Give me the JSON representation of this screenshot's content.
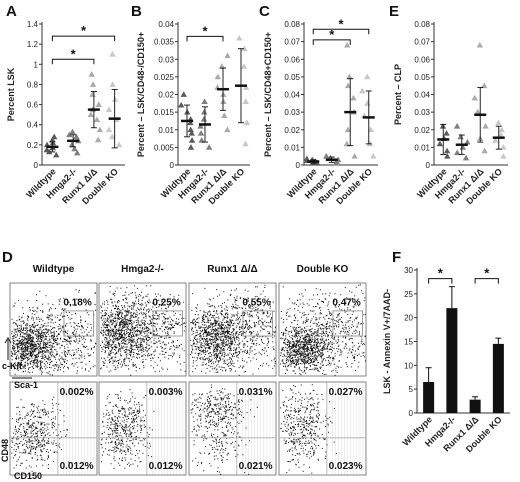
{
  "charts": [
    {
      "panel": "A",
      "type": "scatter",
      "ylabel": "Percent LSK",
      "ylim": [
        0,
        1.4
      ],
      "yticks": [
        "0",
        "0.2",
        "0.4",
        "0.6",
        "0.8",
        "1",
        "1.2",
        "1.4"
      ],
      "categories": [
        "Wildtype",
        "Hmga2-/-",
        "Runx1 Δ/Δ",
        "Double KO"
      ],
      "groups": [
        {
          "points": [
            0.1,
            0.13,
            0.15,
            0.17,
            0.2,
            0.22,
            0.25,
            0.28
          ],
          "mean": 0.18,
          "sd": 0.05
        },
        {
          "points": [
            0.12,
            0.16,
            0.2,
            0.24,
            0.28,
            0.3,
            0.33
          ],
          "mean": 0.24,
          "sd": 0.06
        },
        {
          "points": [
            0.25,
            0.35,
            0.45,
            0.5,
            0.55,
            0.6,
            0.7,
            0.8,
            0.9
          ],
          "mean": 0.55,
          "sd": 0.18
        },
        {
          "points": [
            0.2,
            0.28,
            0.35,
            0.45,
            0.55,
            0.65,
            0.8,
            1.1
          ],
          "mean": 0.46,
          "sd": 0.29
        }
      ],
      "significance": [
        {
          "from": 0,
          "to": 2,
          "level": 1.05,
          "label": "*"
        },
        {
          "from": 0,
          "to": 3,
          "level": 1.28,
          "label": "*"
        }
      ]
    },
    {
      "panel": "B",
      "type": "scatter",
      "ylabel": "Percent – LSK/CD48-/CD150+",
      "ylim": [
        0,
        0.04
      ],
      "yticks": [
        "0",
        "0.005",
        "0.01",
        "0.015",
        "0.02",
        "0.025",
        "0.03",
        "0.035",
        "0.04"
      ],
      "categories": [
        "Wildtype",
        "Hmga2-/-",
        "Runx1 Δ/Δ",
        "Double KO"
      ],
      "groups": [
        {
          "points": [
            0.005,
            0.007,
            0.009,
            0.01,
            0.012,
            0.013,
            0.015,
            0.017,
            0.02
          ],
          "mean": 0.0125,
          "sd": 0.0045
        },
        {
          "points": [
            0.005,
            0.007,
            0.009,
            0.011,
            0.013,
            0.015,
            0.018
          ],
          "mean": 0.0115,
          "sd": 0.005
        },
        {
          "points": [
            0.01,
            0.014,
            0.018,
            0.02,
            0.022,
            0.025,
            0.028,
            0.031
          ],
          "mean": 0.0215,
          "sd": 0.006
        },
        {
          "points": [
            0.006,
            0.012,
            0.018,
            0.022,
            0.028,
            0.033,
            0.036
          ],
          "mean": 0.0225,
          "sd": 0.0105
        }
      ],
      "significance": [
        {
          "from": 0,
          "to": 2,
          "level": 0.0365,
          "label": "*"
        }
      ]
    },
    {
      "panel": "C",
      "type": "scatter",
      "ylabel": "Percent – LSK/CD48+CD150+",
      "ylim": [
        0,
        0.08
      ],
      "yticks": [
        "0",
        "0.01",
        "0.02",
        "0.03",
        "0.04",
        "0.05",
        "0.06",
        "0.07",
        "0.08"
      ],
      "categories": [
        "Wildtype",
        "Hmga2-/-",
        "Runx1 Δ/Δ",
        "Double KO"
      ],
      "groups": [
        {
          "points": [
            0.001,
            0.0015,
            0.002,
            0.0025,
            0.003,
            0.0035
          ],
          "mean": 0.002,
          "sd": 0.001
        },
        {
          "points": [
            0.001,
            0.002,
            0.003,
            0.004,
            0.005
          ],
          "mean": 0.003,
          "sd": 0.0015
        },
        {
          "points": [
            0.005,
            0.012,
            0.02,
            0.03,
            0.038,
            0.045,
            0.05,
            0.068
          ],
          "mean": 0.03,
          "sd": 0.019
        },
        {
          "points": [
            0.005,
            0.012,
            0.02,
            0.028,
            0.035,
            0.042,
            0.05
          ],
          "mean": 0.027,
          "sd": 0.015
        }
      ],
      "significance": [
        {
          "from": 0,
          "to": 2,
          "level": 0.071,
          "label": "*"
        },
        {
          "from": 0,
          "to": 3,
          "level": 0.077,
          "label": "*"
        }
      ]
    },
    {
      "panel": "E",
      "type": "scatter",
      "ylabel": "Percent – CLP",
      "ylim": [
        0,
        0.08
      ],
      "yticks": [
        "0",
        "0.01",
        "0.02",
        "0.03",
        "0.04",
        "0.05",
        "0.06",
        "0.07",
        "0.08"
      ],
      "categories": [
        "Wildtype",
        "Hmga2-/-",
        "Runx1 Δ/Δ",
        "Double KO"
      ],
      "groups": [
        {
          "points": [
            0.005,
            0.008,
            0.012,
            0.015,
            0.018,
            0.022
          ],
          "mean": 0.0145,
          "sd": 0.0085
        },
        {
          "points": [
            0.004,
            0.007,
            0.01,
            0.013,
            0.016,
            0.022
          ],
          "mean": 0.0115,
          "sd": 0.0055
        },
        {
          "points": [
            0.008,
            0.015,
            0.022,
            0.03,
            0.038,
            0.045,
            0.068
          ],
          "mean": 0.0285,
          "sd": 0.0155
        },
        {
          "points": [
            0.005,
            0.01,
            0.014,
            0.017,
            0.02,
            0.024
          ],
          "mean": 0.0155,
          "sd": 0.0065
        }
      ],
      "significance": []
    },
    {
      "panel": "F",
      "type": "bar",
      "ylabel": "LSK - Annexin V+/7AAD-",
      "ylim": [
        0,
        30
      ],
      "yticks": [
        "0",
        "5",
        "10",
        "15",
        "20",
        "25",
        "30"
      ],
      "categories": [
        "Wildtype",
        "Hmga2-/-",
        "Runx1 Δ/Δ",
        "Double KO"
      ],
      "values": [
        6.5,
        22,
        2.8,
        14.5
      ],
      "errors": [
        3,
        4.5,
        0.6,
        1.2
      ],
      "significance": [
        {
          "from": 0,
          "to": 1,
          "level": 28.2,
          "label": "*"
        },
        {
          "from": 2,
          "to": 3,
          "level": 28.2,
          "label": "*"
        }
      ]
    }
  ],
  "flow": {
    "panel": "D",
    "columns": [
      "Wildtype",
      "Hmga2-/-",
      "Runx1 Δ/Δ",
      "Double KO"
    ],
    "top_row": {
      "y_axis": "c-Kit",
      "x_axis": "Sca-1",
      "gate_percent": [
        "0.18%",
        "0.25%",
        "0.55%",
        "0.47%"
      ]
    },
    "bottom_row": {
      "y_axis": "CD48",
      "x_axis": "CD150",
      "upper_right_percent": [
        "0.002%",
        "0.003%",
        "0.031%",
        "0.027%"
      ],
      "lower_right_percent": [
        "0.012%",
        "0.012%",
        "0.021%",
        "0.023%"
      ]
    }
  }
}
